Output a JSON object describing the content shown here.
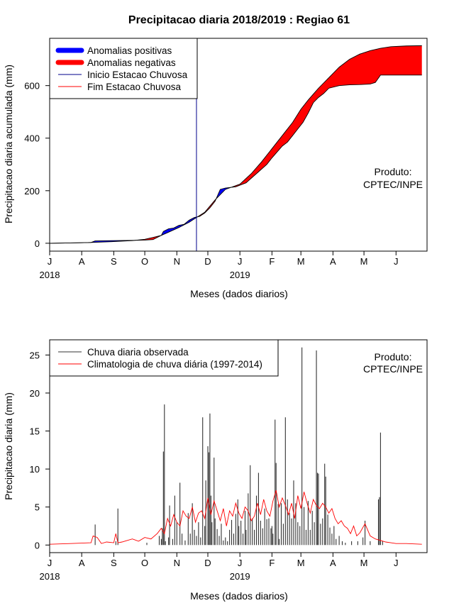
{
  "title": "Precipitacao diaria 2018/2019 : Regiao 61",
  "chart_data": [
    {
      "type": "area",
      "ylabel": "Precipitacao diaria acumulada (mm)",
      "xlabel": "Meses (dados diarios)",
      "xlim": [
        0,
        365
      ],
      "ylim": [
        -30,
        780
      ],
      "yticks": [
        0,
        200,
        400,
        600
      ],
      "month_ticks": [
        {
          "day": 0,
          "label": "J"
        },
        {
          "day": 31,
          "label": "A"
        },
        {
          "day": 62,
          "label": "S"
        },
        {
          "day": 92,
          "label": "O"
        },
        {
          "day": 123,
          "label": "N"
        },
        {
          "day": 153,
          "label": "D"
        },
        {
          "day": 184,
          "label": "J"
        },
        {
          "day": 215,
          "label": "F"
        },
        {
          "day": 243,
          "label": "M"
        },
        {
          "day": 274,
          "label": "A"
        },
        {
          "day": 304,
          "label": "M"
        },
        {
          "day": 335,
          "label": "J"
        }
      ],
      "year_labels": [
        {
          "day": 0,
          "label": "2018"
        },
        {
          "day": 184,
          "label": "2019"
        }
      ],
      "legend": [
        {
          "label": "Anomalias positivas",
          "color": "#0000ff",
          "kind": "thick"
        },
        {
          "label": "Anomalias negativas",
          "color": "#ff0000",
          "kind": "thick"
        },
        {
          "label": "Inicio Estacao Chuvosa",
          "color": "#00008b",
          "kind": "thin"
        },
        {
          "label": "Fim Estacao Chuvosa",
          "color": "#ff0000",
          "kind": "thin"
        }
      ],
      "annotation": [
        "Produto:",
        "CPTEC/INPE"
      ],
      "rainy_season_start_day": 142,
      "series": [
        {
          "name": "Climatologia acumulada",
          "x": [
            0,
            30,
            40,
            60,
            80,
            92,
            100,
            108,
            115,
            125,
            135,
            142,
            150,
            160,
            170,
            184,
            195,
            205,
            215,
            225,
            235,
            243,
            250,
            260,
            270,
            280,
            290,
            300,
            310,
            320,
            330,
            345,
            360
          ],
          "values": [
            0,
            2,
            3,
            6,
            10,
            15,
            22,
            30,
            42,
            60,
            80,
            98,
            118,
            165,
            205,
            225,
            265,
            310,
            360,
            410,
            460,
            510,
            545,
            590,
            630,
            670,
            700,
            720,
            733,
            742,
            748,
            751,
            752
          ]
        },
        {
          "name": "Observado acumulado",
          "x": [
            0,
            30,
            40,
            44,
            60,
            80,
            92,
            100,
            108,
            110,
            115,
            120,
            125,
            130,
            135,
            140,
            145,
            150,
            155,
            160,
            165,
            170,
            180,
            190,
            200,
            210,
            215,
            225,
            230,
            235,
            240,
            245,
            250,
            255,
            260,
            265,
            270,
            280,
            290,
            300,
            310,
            315,
            320,
            330,
            345,
            360
          ],
          "values": [
            0,
            2,
            3,
            9,
            10,
            11,
            12,
            14,
            30,
            45,
            55,
            58,
            68,
            72,
            88,
            98,
            102,
            115,
            135,
            160,
            205,
            210,
            215,
            230,
            265,
            300,
            325,
            370,
            385,
            410,
            435,
            460,
            495,
            535,
            555,
            570,
            590,
            600,
            603,
            604,
            606,
            612,
            640,
            640,
            640,
            640
          ]
        }
      ]
    },
    {
      "type": "bar+line",
      "ylabel": "Precipitacao diaria (mm)",
      "xlabel": "Meses (dados diarios)",
      "xlim": [
        0,
        365
      ],
      "ylim": [
        -1,
        27
      ],
      "yticks": [
        0,
        5,
        10,
        15,
        20,
        25
      ],
      "legend": [
        {
          "label": "Chuva diaria observada",
          "color": "#333333"
        },
        {
          "label": "Climatologia de chuva diária (1997-2014)",
          "color": "#ff0000"
        }
      ],
      "annotation": [
        "Produto:",
        "CPTEC/INPE"
      ],
      "observed_daily": [
        [
          44,
          2.7
        ],
        [
          64,
          0.5
        ],
        [
          66,
          4.8
        ],
        [
          94,
          0.3
        ],
        [
          106,
          1.2
        ],
        [
          108,
          0.8
        ],
        [
          109,
          2.2
        ],
        [
          110,
          12.3
        ],
        [
          111,
          18.5
        ],
        [
          112,
          0.5
        ],
        [
          115,
          1.0
        ],
        [
          116,
          5.2
        ],
        [
          119,
          0.8
        ],
        [
          121,
          6.5
        ],
        [
          123,
          3.0
        ],
        [
          126,
          8.2
        ],
        [
          128,
          1.5
        ],
        [
          131,
          0.6
        ],
        [
          134,
          4.2
        ],
        [
          136,
          1.5
        ],
        [
          138,
          5.5
        ],
        [
          140,
          2.0
        ],
        [
          142,
          1.2
        ],
        [
          144,
          3.0
        ],
        [
          146,
          1.0
        ],
        [
          148,
          16.8
        ],
        [
          150,
          2.5
        ],
        [
          151,
          8.5
        ],
        [
          153,
          13.0
        ],
        [
          154,
          12.2
        ],
        [
          155,
          17.3
        ],
        [
          156,
          6.5
        ],
        [
          157,
          3.0
        ],
        [
          159,
          11.5
        ],
        [
          160,
          3.5
        ],
        [
          162,
          2.1
        ],
        [
          164,
          1.2
        ],
        [
          166,
          2.8
        ],
        [
          168,
          0.6
        ],
        [
          170,
          1.0
        ],
        [
          172,
          0.5
        ],
        [
          174,
          2.0
        ],
        [
          176,
          3.3
        ],
        [
          178,
          1.5
        ],
        [
          180,
          4.1
        ],
        [
          182,
          6.0
        ],
        [
          183,
          2.5
        ],
        [
          185,
          3.2
        ],
        [
          187,
          1.5
        ],
        [
          189,
          4.5
        ],
        [
          190,
          2.0
        ],
        [
          192,
          6.8
        ],
        [
          194,
          10.5
        ],
        [
          196,
          3.5
        ],
        [
          198,
          2.0
        ],
        [
          200,
          6.5
        ],
        [
          202,
          9.5
        ],
        [
          204,
          3.2
        ],
        [
          206,
          2.2
        ],
        [
          208,
          4.8
        ],
        [
          210,
          3.4
        ],
        [
          212,
          3.5
        ],
        [
          214,
          2.2
        ],
        [
          215,
          2.5
        ],
        [
          216,
          1.5
        ],
        [
          218,
          16.5
        ],
        [
          219,
          10.8
        ],
        [
          221,
          5.4
        ],
        [
          222,
          0.8
        ],
        [
          224,
          5.5
        ],
        [
          226,
          2.8
        ],
        [
          228,
          16.8
        ],
        [
          230,
          6.0
        ],
        [
          232,
          4.2
        ],
        [
          234,
          3.5
        ],
        [
          236,
          8.5
        ],
        [
          238,
          5.5
        ],
        [
          240,
          3.0
        ],
        [
          242,
          2.5
        ],
        [
          244,
          26.0
        ],
        [
          246,
          5.0
        ],
        [
          248,
          2.0
        ],
        [
          250,
          5.8
        ],
        [
          252,
          2.0
        ],
        [
          254,
          4.5
        ],
        [
          256,
          3.0
        ],
        [
          258,
          25.6
        ],
        [
          259,
          9.5
        ],
        [
          260,
          9.4
        ],
        [
          262,
          2.8
        ],
        [
          264,
          3.5
        ],
        [
          266,
          10.7
        ],
        [
          267,
          9.0
        ],
        [
          269,
          4.0
        ],
        [
          271,
          2.3
        ],
        [
          273,
          1.5
        ],
        [
          275,
          2.5
        ],
        [
          277,
          0.8
        ],
        [
          280,
          1.2
        ],
        [
          283,
          0.5
        ],
        [
          286,
          0.3
        ],
        [
          292,
          0.5
        ],
        [
          298,
          0.5
        ],
        [
          303,
          1.0
        ],
        [
          305,
          3.2
        ],
        [
          310,
          0.5
        ],
        [
          318,
          6.0
        ],
        [
          319,
          6.3
        ],
        [
          320,
          14.8
        ],
        [
          322,
          0.5
        ]
      ],
      "climatology_daily": {
        "x": [
          0,
          20,
          40,
          42,
          46,
          50,
          55,
          62,
          64,
          66,
          70,
          80,
          86,
          92,
          98,
          104,
          108,
          111,
          114,
          117,
          120,
          123,
          126,
          129,
          132,
          135,
          138,
          141,
          144,
          147,
          150,
          153,
          156,
          159,
          162,
          165,
          168,
          171,
          174,
          177,
          180,
          183,
          186,
          189,
          192,
          195,
          198,
          201,
          204,
          207,
          210,
          213,
          216,
          219,
          222,
          225,
          228,
          231,
          234,
          237,
          240,
          243,
          246,
          249,
          252,
          255,
          258,
          261,
          264,
          267,
          270,
          273,
          276,
          279,
          282,
          285,
          288,
          291,
          294,
          297,
          300,
          305,
          310,
          315,
          320,
          325,
          330,
          335,
          345,
          360
        ],
        "values": [
          0.1,
          0.2,
          0.3,
          1.2,
          1.0,
          0.2,
          0.4,
          0.3,
          1.5,
          0.3,
          0.4,
          0.8,
          0.5,
          1.0,
          0.8,
          1.5,
          2.2,
          1.5,
          3.5,
          2.5,
          4.0,
          3.0,
          2.5,
          4.5,
          3.8,
          3.5,
          5.0,
          3.0,
          4.2,
          4.5,
          3.5,
          6.2,
          4.0,
          5.8,
          4.5,
          3.2,
          4.8,
          2.5,
          4.5,
          3.8,
          5.5,
          4.2,
          3.5,
          5.0,
          4.5,
          3.2,
          3.8,
          5.5,
          4.0,
          6.0,
          4.5,
          3.8,
          5.8,
          7.2,
          5.0,
          6.2,
          5.2,
          4.0,
          5.5,
          3.5,
          6.5,
          4.8,
          7.0,
          5.5,
          4.2,
          6.0,
          5.2,
          4.8,
          5.5,
          5.0,
          4.2,
          4.8,
          3.5,
          2.8,
          3.2,
          2.5,
          2.2,
          1.5,
          2.5,
          1.2,
          1.6,
          2.8,
          1.2,
          0.8,
          0.6,
          0.4,
          0.3,
          0.2,
          0.2,
          0.1
        ]
      }
    }
  ]
}
